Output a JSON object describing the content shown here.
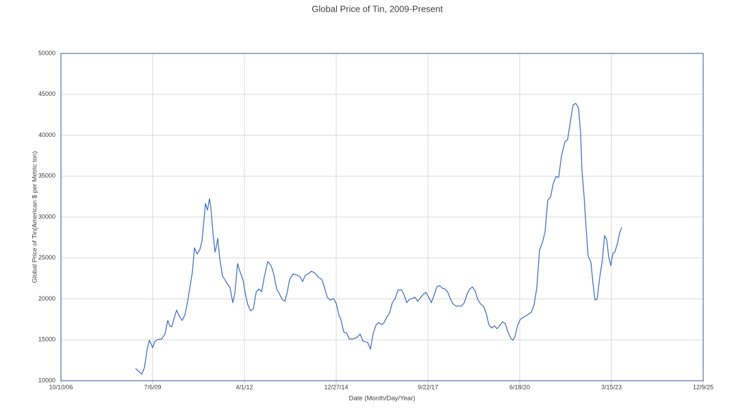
{
  "chart_data": {
    "type": "line",
    "title": "Global Price of Tin, 2009-Present",
    "xlabel": "Date (Month/Day/Year)",
    "ylabel": "Global Price of Tin(American $ per Metric ton)",
    "color": "#4472c4",
    "grid": true,
    "xlim": [
      39000,
      46000
    ],
    "xticks": [
      {
        "value": 39000,
        "label": "10/10/06"
      },
      {
        "value": 40000,
        "label": "7/6/09"
      },
      {
        "value": 41000,
        "label": "4/1/12"
      },
      {
        "value": 42000,
        "label": "12/27/14"
      },
      {
        "value": 43000,
        "label": "9/22/17"
      },
      {
        "value": 44000,
        "label": "6/18/20"
      },
      {
        "value": 45000,
        "label": "3/15/23"
      },
      {
        "value": 46000,
        "label": "12/9/25"
      }
    ],
    "ylim": [
      10000,
      50000
    ],
    "yticks": [
      10000,
      15000,
      20000,
      25000,
      30000,
      35000,
      40000,
      45000,
      50000
    ],
    "x": [
      39813,
      39851,
      39881,
      39910,
      39940,
      39963,
      39985,
      40000,
      40022,
      40052,
      40097,
      40134,
      40164,
      40187,
      40209,
      40231,
      40261,
      40291,
      40321,
      40351,
      40381,
      40410,
      40433,
      40455,
      40485,
      40515,
      40537,
      40560,
      40575,
      40597,
      40619,
      40634,
      40657,
      40679,
      40694,
      40709,
      40731,
      40761,
      40806,
      40843,
      40873,
      40896,
      40925,
      40955,
      40985,
      41008,
      41037,
      41067,
      41097,
      41127,
      41157,
      41187,
      41217,
      41254,
      41291,
      41321,
      41351,
      41381,
      41410,
      41440,
      41463,
      41493,
      41530,
      41575,
      41605,
      41634,
      41664,
      41694,
      41731,
      41769,
      41806,
      41843,
      41873,
      41903,
      41933,
      41970,
      42000,
      42030,
      42052,
      42082,
      42112,
      42142,
      42179,
      42224,
      42261,
      42291,
      42314,
      42343,
      42373,
      42403,
      42433,
      42463,
      42500,
      42522,
      42552,
      42582,
      42612,
      42642,
      42672,
      42709,
      42739,
      42769,
      42799,
      42828,
      42858,
      42888,
      42918,
      42948,
      42978,
      43008,
      43037,
      43067,
      43097,
      43127,
      43157,
      43187,
      43217,
      43246,
      43276,
      43306,
      43336,
      43366,
      43396,
      43425,
      43455,
      43485,
      43515,
      43545,
      43575,
      43604,
      43634,
      43664,
      43694,
      43724,
      43754,
      43784,
      43813,
      43843,
      43873,
      43903,
      43925,
      43948,
      43978,
      44008,
      44045,
      44082,
      44127,
      44157,
      44187,
      44216,
      44246,
      44276,
      44306,
      44336,
      44366,
      44396,
      44425,
      44455,
      44493,
      44522,
      44552,
      44582,
      44612,
      44642,
      44664,
      44679,
      44701,
      44724,
      44746,
      44776,
      44799,
      44821,
      44843,
      44873,
      44903,
      44925,
      44948,
      44970,
      44993,
      45015,
      45037,
      45067,
      45090,
      45112
    ],
    "values": [
      11500,
      11100,
      10800,
      11600,
      13850,
      14940,
      14430,
      14020,
      14770,
      15020,
      15100,
      15690,
      17360,
      16690,
      16610,
      17530,
      18620,
      17870,
      17360,
      18030,
      19710,
      21720,
      23310,
      26230,
      25480,
      26070,
      27070,
      29750,
      31670,
      30840,
      32260,
      31170,
      28080,
      25730,
      26400,
      27410,
      24900,
      22800,
      21970,
      21380,
      19540,
      20710,
      24310,
      23220,
      22300,
      20710,
      19290,
      18540,
      18790,
      20800,
      21210,
      20880,
      22720,
      24560,
      24060,
      22970,
      21210,
      20630,
      19960,
      19710,
      20630,
      22380,
      23050,
      22890,
      22720,
      22130,
      22890,
      23050,
      23390,
      23140,
      22640,
      22380,
      21380,
      20210,
      19870,
      20040,
      19460,
      18030,
      17450,
      15940,
      15860,
      15100,
      15100,
      15270,
      15690,
      14850,
      14770,
      14690,
      13850,
      15770,
      16780,
      17110,
      16860,
      17110,
      17780,
      18280,
      19540,
      20040,
      21050,
      21130,
      20540,
      19540,
      19960,
      20040,
      20210,
      19710,
      20130,
      20540,
      20800,
      20210,
      19540,
      20460,
      21460,
      21630,
      21300,
      21210,
      20800,
      19960,
      19370,
      19120,
      19120,
      19120,
      19540,
      20540,
      21210,
      21460,
      20960,
      19870,
      19370,
      19120,
      18280,
      16860,
      16440,
      16690,
      16360,
      16780,
      17200,
      16950,
      15940,
      15190,
      14940,
      15360,
      16780,
      17530,
      17780,
      18030,
      18370,
      19290,
      21380,
      25980,
      26820,
      28160,
      32090,
      32430,
      34100,
      34940,
      34850,
      37450,
      39200,
      39460,
      41630,
      43720,
      43890,
      43300,
      40210,
      35610,
      32680,
      28660,
      25230,
      24480,
      21880,
      19870,
      19960,
      22640,
      24900,
      27740,
      27240,
      25150,
      24060,
      25560,
      25730,
      26820,
      28080,
      28740
    ]
  }
}
